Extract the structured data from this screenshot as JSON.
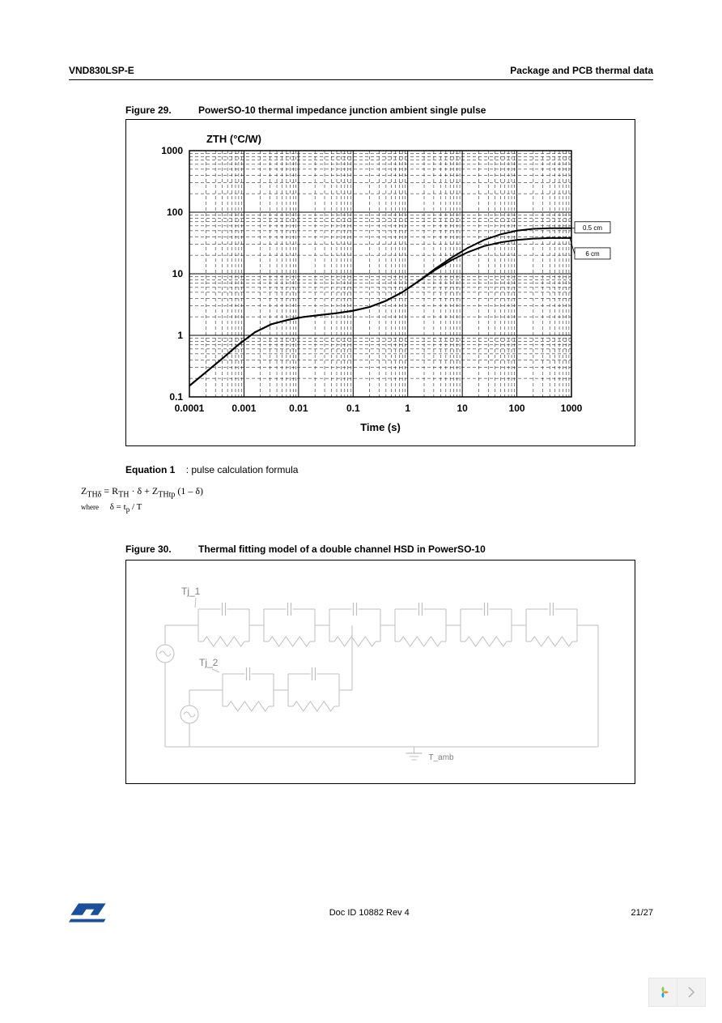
{
  "header": {
    "left": "VND830LSP-E",
    "right": "Package and PCB thermal data"
  },
  "figure29": {
    "number": "Figure 29.",
    "title": "PowerSO-10 thermal impedance junction ambient single pulse",
    "type": "line-loglog",
    "ylabel_html": "ZTH (°C/W)",
    "xlabel": "Time (s)",
    "x_log_min": -4,
    "x_log_max": 3,
    "y_log_min": -1,
    "y_log_max": 3,
    "xtick_labels": [
      "0.0001",
      "0.001",
      "0.01",
      "0.1",
      "1",
      "10",
      "100",
      "1000"
    ],
    "ytick_labels": [
      "0.1",
      "1",
      "10",
      "100",
      "1000"
    ],
    "grid_color": "#000000",
    "background_color": "#ffffff",
    "line_color": "#000000",
    "line_width": 2,
    "series": [
      {
        "name": "0.5 cm",
        "label": "0.5 cm",
        "points_log": [
          [
            -4.0,
            -0.82
          ],
          [
            -3.7,
            -0.6
          ],
          [
            -3.4,
            -0.38
          ],
          [
            -3.1,
            -0.15
          ],
          [
            -2.8,
            0.05
          ],
          [
            -2.5,
            0.18
          ],
          [
            -2.2,
            0.25
          ],
          [
            -1.9,
            0.3
          ],
          [
            -1.6,
            0.33
          ],
          [
            -1.3,
            0.36
          ],
          [
            -1.0,
            0.4
          ],
          [
            -0.7,
            0.46
          ],
          [
            -0.4,
            0.56
          ],
          [
            -0.1,
            0.7
          ],
          [
            0.2,
            0.88
          ],
          [
            0.5,
            1.08
          ],
          [
            0.8,
            1.26
          ],
          [
            1.1,
            1.42
          ],
          [
            1.4,
            1.55
          ],
          [
            1.7,
            1.64
          ],
          [
            2.0,
            1.7
          ],
          [
            2.3,
            1.73
          ],
          [
            2.6,
            1.74
          ],
          [
            3.0,
            1.74
          ]
        ]
      },
      {
        "name": "6 cm",
        "label": "6 cm",
        "points_log": [
          [
            -4.0,
            -0.82
          ],
          [
            -3.7,
            -0.6
          ],
          [
            -3.4,
            -0.38
          ],
          [
            -3.1,
            -0.15
          ],
          [
            -2.8,
            0.05
          ],
          [
            -2.5,
            0.18
          ],
          [
            -2.2,
            0.25
          ],
          [
            -1.9,
            0.3
          ],
          [
            -1.6,
            0.33
          ],
          [
            -1.3,
            0.36
          ],
          [
            -1.0,
            0.4
          ],
          [
            -0.7,
            0.46
          ],
          [
            -0.4,
            0.56
          ],
          [
            -0.1,
            0.7
          ],
          [
            0.2,
            0.88
          ],
          [
            0.5,
            1.06
          ],
          [
            0.8,
            1.22
          ],
          [
            1.1,
            1.35
          ],
          [
            1.4,
            1.45
          ],
          [
            1.7,
            1.51
          ],
          [
            2.0,
            1.55
          ],
          [
            2.3,
            1.57
          ],
          [
            2.6,
            1.58
          ],
          [
            3.0,
            1.58
          ]
        ]
      }
    ]
  },
  "equation": {
    "label": "Equation 1",
    "sublabel": ": pulse calculation formula",
    "line1_html": "Z<sub>THδ</sub> = R<sub>TH</sub> · δ + Z<sub>THtp</sub> (1 – δ)",
    "line2_prefix": "where",
    "line2_html": "δ = t<sub>p</sub> / T"
  },
  "figure30": {
    "number": "Figure 30.",
    "title": "Thermal fitting model of a double channel HSD in PowerSO-10",
    "type": "circuit",
    "labels": {
      "tj1": "Tj_1",
      "tj2": "Tj_2",
      "tamb": "T_amb"
    },
    "line_color": "#bfbfbf",
    "text_color": "#808080",
    "top_chain_blocks": 6,
    "bottom_chain_blocks": 2
  },
  "footer": {
    "doc_id": "Doc ID 10882 Rev 4",
    "page": "21/27"
  }
}
